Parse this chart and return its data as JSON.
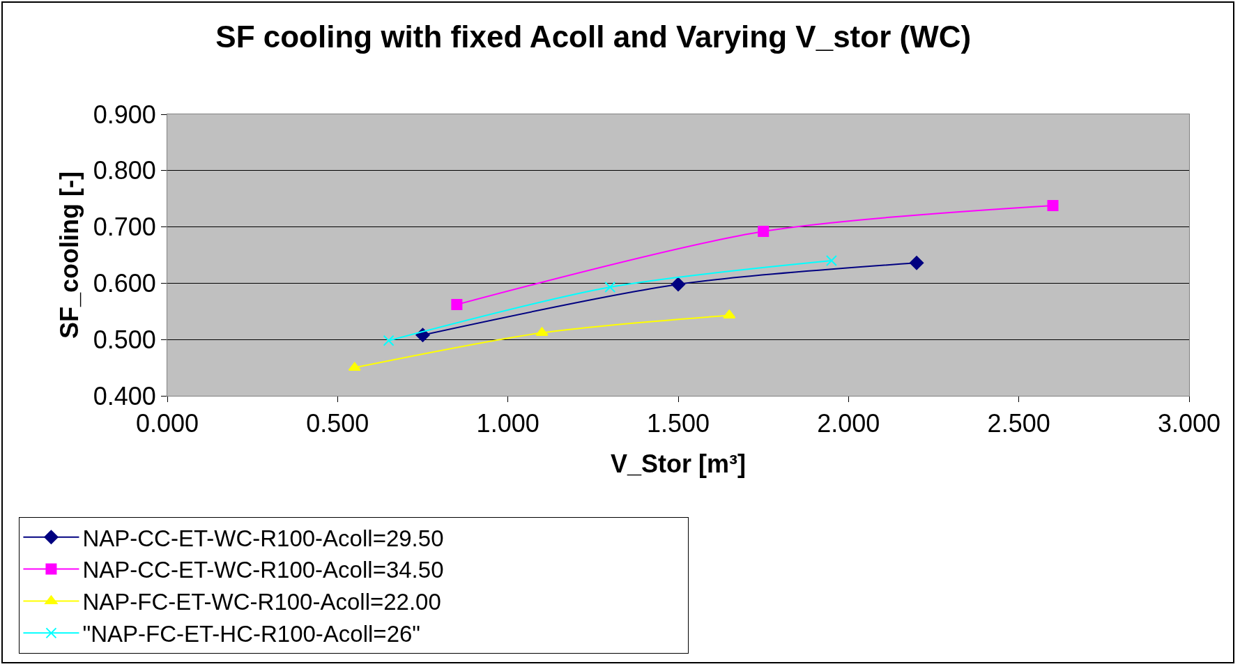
{
  "chart_data": {
    "type": "line",
    "title": "SF cooling with fixed Acoll and Varying V_stor (WC)",
    "xlabel": "V_Stor [m³]",
    "ylabel": "SF_cooling [-]",
    "series": [
      {
        "name": "NAP-CC-ET-WC-R100-Acoll=29.50",
        "color": "#000080",
        "marker": "diamond",
        "x": [
          0.75,
          1.5,
          2.2
        ],
        "values": [
          0.508,
          0.598,
          0.636
        ]
      },
      {
        "name": "NAP-CC-ET-WC-R100-Acoll=34.50",
        "color": "#ff00ff",
        "marker": "square",
        "x": [
          0.85,
          1.75,
          2.6
        ],
        "values": [
          0.562,
          0.692,
          0.738
        ]
      },
      {
        "name": "NAP-FC-ET-WC-R100-Acoll=22.00",
        "color": "#ffff00",
        "marker": "triangle",
        "x": [
          0.55,
          1.1,
          1.65
        ],
        "values": [
          0.45,
          0.512,
          0.543
        ]
      },
      {
        "name": "\"NAP-FC-ET-HC-R100-Acoll=26\"",
        "color": "#00ffff",
        "marker": "cross",
        "x": [
          0.65,
          1.3,
          1.95
        ],
        "values": [
          0.498,
          0.593,
          0.64
        ]
      }
    ],
    "xlim": [
      0,
      3
    ],
    "xticks": [
      {
        "value": 0,
        "label": "0.000"
      },
      {
        "value": 0.5,
        "label": "0.500"
      },
      {
        "value": 1,
        "label": "1.000"
      },
      {
        "value": 1.5,
        "label": "1.500"
      },
      {
        "value": 2,
        "label": "2.000"
      },
      {
        "value": 2.5,
        "label": "2.500"
      },
      {
        "value": 3,
        "label": "3.000"
      }
    ],
    "ylim": [
      0.4,
      0.9
    ],
    "yticks": [
      {
        "value": 0.4,
        "label": "0.400"
      },
      {
        "value": 0.5,
        "label": "0.500"
      },
      {
        "value": 0.6,
        "label": "0.600"
      },
      {
        "value": 0.7,
        "label": "0.700"
      },
      {
        "value": 0.8,
        "label": "0.800"
      },
      {
        "value": 0.9,
        "label": "0.900"
      }
    ],
    "grid": "y",
    "legend": "bottom",
    "line_style": "solid"
  }
}
